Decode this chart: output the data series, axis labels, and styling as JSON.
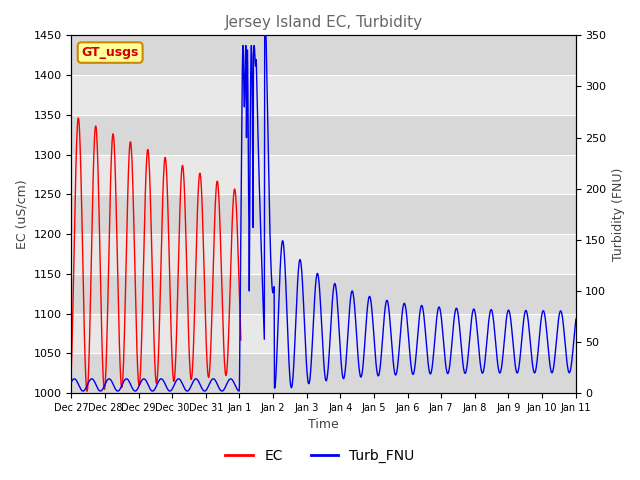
{
  "title": "Jersey Island EC, Turbidity",
  "xlabel": "Time",
  "ylabel_left": "EC (uS/cm)",
  "ylabel_right": "Turbidity (FNU)",
  "ylim_left": [
    1000,
    1450
  ],
  "ylim_right": [
    0,
    350
  ],
  "yticks_left": [
    1000,
    1050,
    1100,
    1150,
    1200,
    1250,
    1300,
    1350,
    1400,
    1450
  ],
  "yticks_right": [
    0,
    50,
    100,
    150,
    200,
    250,
    300,
    350
  ],
  "x_tick_labels": [
    "Dec 27",
    "Dec 28",
    "Dec 29",
    "Dec 30",
    "Dec 31",
    "Jan 1",
    "Jan 2",
    "Jan 3",
    "Jan 4",
    "Jan 5",
    "Jan 6",
    "Jan 7",
    "Jan 8",
    "Jan 9",
    "Jan 10",
    "Jan 11"
  ],
  "ec_color": "#ff0000",
  "turb_color": "#0000ee",
  "bg_color": "#e8e8e8",
  "grid_color": "#ffffff",
  "annotation_text": "GT_usgs",
  "annotation_bg": "#ffff99",
  "annotation_border": "#cc8800",
  "annotation_text_color": "#cc0000",
  "legend_labels": [
    "EC",
    "Turb_FNU"
  ],
  "title_color": "#666666",
  "axis_label_color": "#444444"
}
